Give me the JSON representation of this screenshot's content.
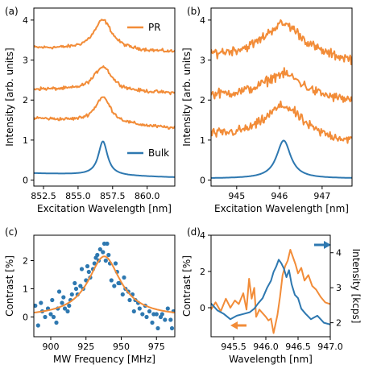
{
  "colors": {
    "orange": "#f28c38",
    "blue": "#2e78b0",
    "axis": "#000000"
  },
  "chart_data": [
    {
      "id": "a",
      "panel_label": "(a)",
      "type": "line",
      "xlabel": "Excitation Wavelength [nm]",
      "ylabel": "Intensity [arb. units]",
      "xlim": [
        851.8,
        862.0
      ],
      "ylim": [
        -0.15,
        4.3
      ],
      "xticks": [
        852.5,
        855.0,
        857.5,
        860.0
      ],
      "xtick_labels": [
        "852.5",
        "855.0",
        "857.5",
        "860.0"
      ],
      "yticks": [
        0,
        1,
        2,
        3,
        4
      ],
      "ytick_labels": [
        "0",
        "1",
        "2",
        "3",
        "4"
      ],
      "legend": [
        {
          "name": "PR",
          "color": "#f28c38",
          "position": "top-right"
        },
        {
          "name": "Bulk",
          "color": "#2e78b0",
          "position": "bottom-right"
        }
      ],
      "series": [
        {
          "name": "PR",
          "color": "#f28c38",
          "baseline": 3.25,
          "peak_x": 856.8,
          "amplitude": 0.75,
          "width": 0.8,
          "tilt": -0.01,
          "noise": 0.04
        },
        {
          "name": "PR",
          "color": "#f28c38",
          "baseline": 2.22,
          "peak_x": 856.8,
          "amplitude": 0.62,
          "width": 0.8,
          "tilt": -0.01,
          "noise": 0.04
        },
        {
          "name": "PR",
          "color": "#f28c38",
          "baseline": 1.42,
          "peak_x": 856.8,
          "amplitude": 0.65,
          "width": 0.7,
          "tilt": -0.025,
          "noise": 0.04
        },
        {
          "name": "Bulk",
          "color": "#2e78b0",
          "baseline": 0.12,
          "peak_x": 856.8,
          "amplitude": 0.85,
          "width": 0.4,
          "tilt": -0.01,
          "noise": 0.0
        }
      ]
    },
    {
      "id": "b",
      "panel_label": "(b)",
      "type": "line",
      "xlabel": "Excitation Wavelength [nm]",
      "ylabel": "Intensity [arb. units]",
      "xlim": [
        944.4,
        947.7
      ],
      "ylim": [
        -0.15,
        4.3
      ],
      "xticks": [
        945,
        946,
        947
      ],
      "xtick_labels": [
        "945",
        "946",
        "947"
      ],
      "yticks": [
        0,
        1,
        2,
        3,
        4
      ],
      "ytick_labels": [
        "0",
        "1",
        "2",
        "3",
        "4"
      ],
      "series": [
        {
          "name": "PR",
          "color": "#f28c38",
          "baseline": 3.0,
          "peak_x": 946.1,
          "amplitude": 0.9,
          "width": 0.6,
          "tilt": -0.05,
          "noise": 0.12
        },
        {
          "name": "PR",
          "color": "#f28c38",
          "baseline": 2.0,
          "peak_x": 946.1,
          "amplitude": 0.65,
          "width": 0.6,
          "tilt": -0.05,
          "noise": 0.12
        },
        {
          "name": "PR",
          "color": "#f28c38",
          "baseline": 1.0,
          "peak_x": 946.1,
          "amplitude": 0.85,
          "width": 0.55,
          "tilt": -0.05,
          "noise": 0.12
        },
        {
          "name": "Bulk",
          "color": "#2e78b0",
          "baseline": 0.04,
          "peak_x": 946.1,
          "amplitude": 0.95,
          "width": 0.2,
          "tilt": 0.0,
          "noise": 0.0
        }
      ]
    },
    {
      "id": "c",
      "panel_label": "(c)",
      "type": "scatter",
      "xlabel": "MW Frequency [MHz]",
      "ylabel": "Contrast [%]",
      "xlim": [
        888,
        988
      ],
      "ylim": [
        -0.7,
        2.9
      ],
      "xticks": [
        900,
        925,
        950,
        975
      ],
      "xtick_labels": [
        "900",
        "925",
        "950",
        "975"
      ],
      "yticks": [
        0,
        1,
        2
      ],
      "ytick_labels": [
        "0",
        "1",
        "2"
      ],
      "points": [
        [
          889,
          0.4
        ],
        [
          891,
          -0.3
        ],
        [
          893,
          0.5
        ],
        [
          894,
          0.2
        ],
        [
          896,
          0.0
        ],
        [
          898,
          0.3
        ],
        [
          900,
          0.1
        ],
        [
          901,
          0.6
        ],
        [
          902,
          0.0
        ],
        [
          904,
          -0.2
        ],
        [
          905,
          0.3
        ],
        [
          906,
          0.9
        ],
        [
          908,
          0.5
        ],
        [
          909,
          0.7
        ],
        [
          910,
          0.3
        ],
        [
          912,
          0.2
        ],
        [
          913,
          0.4
        ],
        [
          914,
          0.6
        ],
        [
          915,
          0.8
        ],
        [
          917,
          1.2
        ],
        [
          918,
          1.0
        ],
        [
          919,
          0.8
        ],
        [
          921,
          1.1
        ],
        [
          922,
          1.7
        ],
        [
          923,
          1.0
        ],
        [
          925,
          1.3
        ],
        [
          926,
          1.8
        ],
        [
          927,
          1.6
        ],
        [
          928,
          1.4
        ],
        [
          930,
          1.7
        ],
        [
          931,
          1.9
        ],
        [
          932,
          2.1
        ],
        [
          933,
          2.2
        ],
        [
          934,
          2.0
        ],
        [
          935,
          2.4
        ],
        [
          937,
          2.3
        ],
        [
          938,
          2.6
        ],
        [
          939,
          2.0
        ],
        [
          940,
          2.6
        ],
        [
          941,
          2.2
        ],
        [
          942,
          1.9
        ],
        [
          943,
          1.3
        ],
        [
          945,
          1.1
        ],
        [
          946,
          1.9
        ],
        [
          947,
          1.6
        ],
        [
          948,
          1.2
        ],
        [
          949,
          1.2
        ],
        [
          951,
          0.8
        ],
        [
          952,
          1.4
        ],
        [
          953,
          1.0
        ],
        [
          955,
          0.9
        ],
        [
          956,
          0.6
        ],
        [
          958,
          0.8
        ],
        [
          959,
          0.2
        ],
        [
          960,
          0.6
        ],
        [
          962,
          0.5
        ],
        [
          963,
          0.3
        ],
        [
          965,
          0.1
        ],
        [
          967,
          0.4
        ],
        [
          968,
          0.0
        ],
        [
          970,
          0.2
        ],
        [
          972,
          -0.2
        ],
        [
          973,
          0.1
        ],
        [
          975,
          0.1
        ],
        [
          976,
          -0.4
        ],
        [
          978,
          0.0
        ],
        [
          979,
          0.1
        ],
        [
          981,
          -0.1
        ],
        [
          983,
          0.3
        ],
        [
          985,
          -0.1
        ],
        [
          986,
          -0.4
        ],
        [
          987,
          0.2
        ]
      ],
      "points_color": "#2e78b0",
      "fit": {
        "color": "#f28c38",
        "center": 938,
        "amplitude": 2.15,
        "width": 14,
        "offset": 0.0
      }
    },
    {
      "id": "d",
      "panel_label": "(d)",
      "type": "line",
      "xlabel": "Wavelength [nm]",
      "ylabel": "Contrast [%]",
      "ylabel_right": "Intensity [kcps]",
      "xlim": [
        945.15,
        947.0
      ],
      "ylim": [
        -1.6,
        4.0
      ],
      "ylim_right": [
        1.6,
        4.5
      ],
      "xticks": [
        945.5,
        946.0,
        946.5,
        947.0
      ],
      "xtick_labels": [
        "945.5",
        "946.0",
        "946.5",
        "947.0"
      ],
      "yticks": [
        0,
        2,
        4
      ],
      "ytick_labels": [
        "0",
        "2",
        "4"
      ],
      "yticks_right": [
        2,
        3,
        4
      ],
      "ytick_labels_right": [
        "2",
        "3",
        "4"
      ],
      "series": [
        {
          "name": "contrast",
          "axis": "left",
          "color": "#f28c38",
          "x": [
            945.15,
            945.22,
            945.3,
            945.38,
            945.45,
            945.52,
            945.58,
            945.65,
            945.7,
            945.74,
            945.78,
            945.82,
            945.85,
            945.9,
            945.95,
            946.0,
            946.04,
            946.08,
            946.12,
            946.15,
            946.18,
            946.22,
            946.26,
            946.3,
            946.34,
            946.38,
            946.42,
            946.46,
            946.5,
            946.55,
            946.6,
            946.66,
            946.72,
            946.78,
            946.85,
            946.92,
            947.0
          ],
          "y": [
            -0.1,
            0.3,
            -0.2,
            0.5,
            0.0,
            0.4,
            0.2,
            0.8,
            -0.1,
            1.6,
            0.5,
            1.1,
            -0.5,
            -0.1,
            -0.3,
            -0.5,
            -0.7,
            -0.6,
            -1.4,
            -0.9,
            -0.4,
            0.6,
            1.8,
            2.3,
            2.6,
            3.2,
            2.8,
            2.4,
            1.9,
            2.2,
            1.5,
            1.8,
            1.2,
            1.0,
            0.6,
            0.3,
            0.2
          ]
        },
        {
          "name": "intensity",
          "axis": "right",
          "color": "#2e78b0",
          "x": [
            945.15,
            945.25,
            945.35,
            945.45,
            945.55,
            945.65,
            945.75,
            945.82,
            945.88,
            945.95,
            946.02,
            946.08,
            946.12,
            946.16,
            946.2,
            946.24,
            946.28,
            946.32,
            946.36,
            946.4,
            946.45,
            946.5,
            946.55,
            946.62,
            946.7,
            946.8,
            946.9,
            947.0
          ],
          "y": [
            2.55,
            2.35,
            2.25,
            2.1,
            2.2,
            2.25,
            2.3,
            2.4,
            2.55,
            2.7,
            3.0,
            3.2,
            3.45,
            3.6,
            3.8,
            3.7,
            3.55,
            3.3,
            3.5,
            3.1,
            2.8,
            2.7,
            2.4,
            2.25,
            2.1,
            2.2,
            2.0,
            1.95
          ]
        }
      ],
      "annotations": [
        {
          "kind": "arrow",
          "direction": "right",
          "color": "#2e78b0"
        },
        {
          "kind": "arrow",
          "direction": "left",
          "color": "#f28c38"
        }
      ]
    }
  ]
}
